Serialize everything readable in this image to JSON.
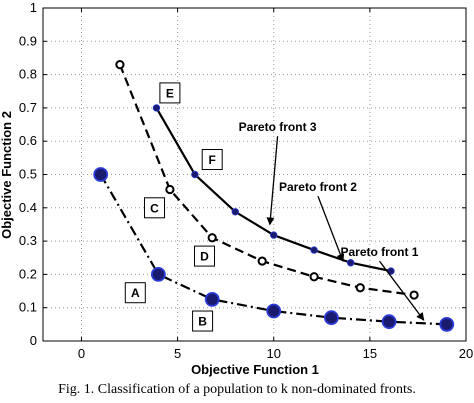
{
  "chart_data": {
    "type": "line",
    "xlabel": "Objective Function 1",
    "ylabel": "Objective Function 2",
    "xlim": [
      -2,
      20
    ],
    "ylim": [
      0,
      1
    ],
    "xticks": [
      "0",
      "5",
      "10",
      "15",
      "20"
    ],
    "yticks": [
      "0",
      "0.1",
      "0.2",
      "0.3",
      "0.4",
      "0.5",
      "0.6",
      "0.7",
      "0.8",
      "0.9",
      "1"
    ],
    "grid": true,
    "series": [
      {
        "name": "Pareto front 1",
        "line_style": "dash-dot",
        "marker": "filled-circle-large",
        "points": [
          [
            1,
            0.5
          ],
          [
            4,
            0.2
          ],
          [
            6.8,
            0.125
          ],
          [
            10,
            0.09
          ],
          [
            13,
            0.07
          ],
          [
            16,
            0.058
          ],
          [
            19,
            0.05
          ]
        ]
      },
      {
        "name": "Pareto front 2",
        "line_style": "dashed",
        "marker": "open-circle",
        "points": [
          [
            2,
            0.83
          ],
          [
            4.6,
            0.455
          ],
          [
            6.8,
            0.31
          ],
          [
            9.4,
            0.24
          ],
          [
            12.1,
            0.193
          ],
          [
            14.5,
            0.16
          ],
          [
            17.3,
            0.138
          ]
        ]
      },
      {
        "name": "Pareto front 3",
        "line_style": "solid",
        "marker": "small-filled-dot",
        "points": [
          [
            3.9,
            0.7
          ],
          [
            5.9,
            0.5
          ],
          [
            8,
            0.388
          ],
          [
            10,
            0.318
          ],
          [
            12.1,
            0.273
          ],
          [
            14,
            0.235
          ],
          [
            16.1,
            0.21
          ]
        ]
      }
    ],
    "annotations": [
      {
        "text": "Pareto front 3",
        "x": 10.2,
        "y": 0.63,
        "arrow_to": [
          9.8,
          0.35
        ]
      },
      {
        "text": "Pareto front 2",
        "x": 12.3,
        "y": 0.45,
        "arrow_to": [
          13.6,
          0.24
        ]
      },
      {
        "text": "Pareto front 1",
        "x": 15.5,
        "y": 0.255,
        "arrow_to": [
          17.8,
          0.063
        ]
      }
    ],
    "box_labels": [
      {
        "text": "E",
        "x": 4.6,
        "y": 0.745
      },
      {
        "text": "F",
        "x": 6.8,
        "y": 0.545
      },
      {
        "text": "C",
        "x": 3.8,
        "y": 0.4
      },
      {
        "text": "D",
        "x": 6.4,
        "y": 0.255
      },
      {
        "text": "A",
        "x": 2.8,
        "y": 0.145
      },
      {
        "text": "B",
        "x": 6.3,
        "y": 0.06
      }
    ],
    "colors": {
      "axis": "#000000",
      "grid": "#9a9a9a",
      "line": "#000000",
      "marker_fill": "#1a1a6e",
      "marker_edge": "#2b3bd6",
      "open_marker_fill": "#ffffff"
    }
  },
  "caption": "Fig. 1.  Classification of a population to k non-dominated fronts."
}
